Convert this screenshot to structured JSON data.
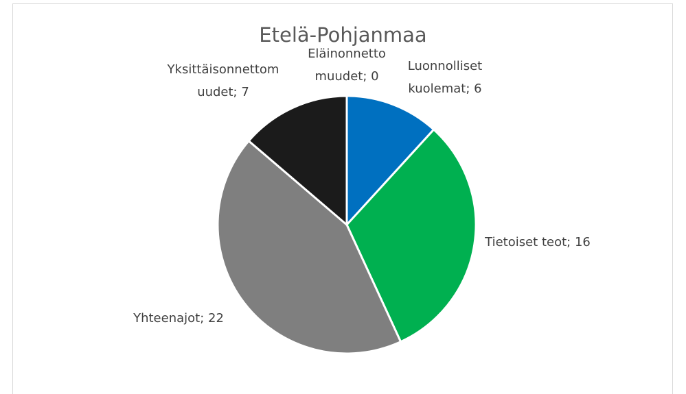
{
  "chart_data": {
    "type": "pie",
    "title": "Etelä-Pohjanmaa",
    "categories": [
      "Luonnolliset kuolemat",
      "Tietoiset teot",
      "Yhteenajot",
      "Yksittäisonnettomuudet",
      "Eläinonnettomuudet"
    ],
    "values": [
      6,
      16,
      22,
      7,
      0
    ],
    "value_labels": [
      "Luonnolliset kuolemat; 6",
      "Tietoiset teot; 16",
      "Yhteenajot; 22",
      "Yksittäisonnettomuudet; 7",
      "Eläinonnettomuudet; 0"
    ],
    "colors": [
      "#0070c0",
      "#00b050",
      "#7f7f7f",
      "#1b1b1b",
      "#ffc000"
    ]
  }
}
